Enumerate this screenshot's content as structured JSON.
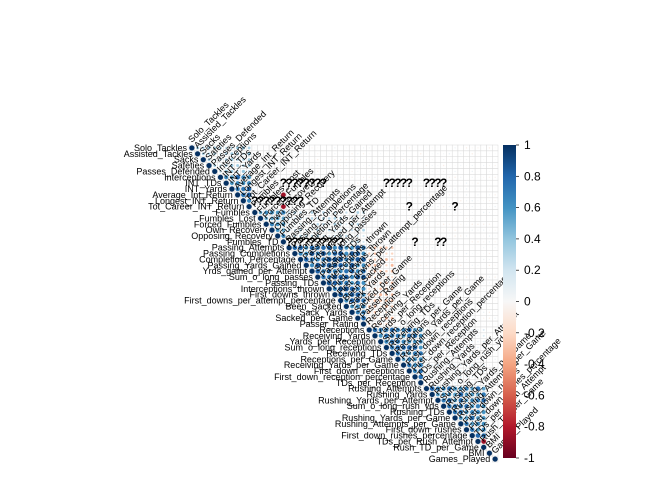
{
  "chart_data": {
    "type": "heatmap",
    "shape": "upper-triangle circles",
    "title": "",
    "variables": [
      "Solo_Tackles",
      "Assisted_Tackles",
      "Sacks",
      "Safeties",
      "Passes_Defended",
      "Interceptions",
      "INT_TDs",
      "INT_Yards",
      "Average_Int_Return",
      "Longest_INT_Return",
      "Tot_Career_INT_Return",
      "Fumbles",
      "Fumbles_Lost",
      "Forced_Fumbles",
      "Own_Recovery",
      "Opposing_Recovery",
      "Fumbles_TD",
      "Passing_Attempts",
      "Passing_Completions",
      "Completion_Percentage",
      "Passing_Yards_Gained",
      "Yrds_gained_per_Attempt",
      "Sum_o_long_passes",
      "Passing_TDs",
      "Interceptions_thrown",
      "First_downs_thrown",
      "First_downs_per_attempt_percentage",
      "Been_Sacked",
      "Sack_Yards",
      "Sacked_per_Game",
      "Passer_Rating",
      "Receptions",
      "Receiving_Yards",
      "Yards_per_Reception",
      "Sum_o_long_receptions",
      "Receiving_TDs",
      "Receptions_per_Game",
      "Receiving_Yards_per_Game",
      "First_down_receptions",
      "First_down_reception_percentage",
      "TDs_per_Reception",
      "Rushing_Attempts",
      "Rushing_Yards",
      "Rushing_Yards_per_Attempt",
      "Sum_o_long_rush_yds",
      "Rushing_TDs",
      "Rushing_Yards_per_Game",
      "Rushing_Attempts_per_Game",
      "First_down_rushes",
      "First_down_rushes_percentage",
      "TDs_per_Rush_Attempt",
      "Rush_TD_per_Game",
      "BMI",
      "Games_Played"
    ],
    "row_labels": [
      "Solo_Tackles",
      "Assisted_Tackles",
      "Sacks",
      "Safeties",
      "Passes_Defended",
      "Interceptions",
      "INT_TDs",
      "INT_Yards",
      "Average_Int_Return",
      "Longest_INT_Return",
      "Tot_Career_INT_Return",
      "Fumbles",
      "Fumbles_Lost",
      "Forced_Fumbles",
      "Own_Recovery",
      "Opposing_Recovery",
      "Fumbles_TD",
      "Passing_Attempts",
      "Passing_Completions",
      "Completion_Percentage",
      "Passing_Yards_Gained",
      "Yrds_gained_per_Attempt",
      "Sum_o_long_passes",
      "Passing_TDs",
      "Interceptions_thrown",
      "First_downs_thrown",
      "First_downs_per_attempt_percentage",
      "Been_Sacked",
      "Sack_Yards",
      "Sacked_per_Game",
      "Passer_Rating",
      "Receptions",
      "Receiving_Yards",
      "Yards_per_Reception",
      "Sum_o_long_receptions",
      "Receiving_TDs",
      "Receptions_per_Game",
      "Receiving_Yards_per_Game",
      "First_down_receptions",
      "First_down_reception_percentage",
      "TDs_per_Reception",
      "Rushing_Attempts",
      "Rushing_Yards",
      "Rushing_Yards_per_Attempt",
      "Sum_o_long_rush_yds",
      "Rushing_TDs",
      "Rushing_Yards_per_Game",
      "Rushing_Attempts_per_Game",
      "First_down_rushes",
      "First_down_rushes_percentage",
      "TDs_per_Rush_Attempt",
      "Rush_TD_per_Game",
      "BMI",
      "Games_Played"
    ],
    "col_labels": [
      "Solo_Tackles",
      "Assisted_Tackles",
      "Sacks",
      "Safeties",
      "Passes_Defended",
      "Interceptions",
      "INT_TDs",
      "INT_Yards",
      "Average_Int_Return",
      "Longest_INT_Return",
      "Tot_Career_INT_Return",
      "Fumbles",
      "Fumbles_Lost",
      "Forced_Fumbles",
      "Own_Recovery",
      "Opposing_Recovery",
      "Fumbles_TD",
      "Passing_Attempts",
      "Passing_Completions",
      "Completion_Percentage",
      "Passing_Yards_Gained",
      "Yrds_gained_per_Attempt",
      "Sum_o_long_passes",
      "Passing_TDs",
      "Interceptions_thrown",
      "First_downs_thrown",
      "First_downs_per_attempt_percentage",
      "Been_Sacked",
      "Sack_Yards",
      "Sacked_per_Game",
      "Passer_Rating",
      "Receptions",
      "Receiving_Yards",
      "Yards_per_Reception",
      "Sum_o_long_receptions",
      "Receiving_TDs",
      "Receptions_per_Game",
      "Receiving_Yards_per_Game",
      "First_down_receptions",
      "First_down_reception_percentage",
      "TDs_per_Reception",
      "Rushing_Attempts",
      "Rushing_Yards",
      "Rushing_Yards_per_Attempt",
      "Sum_o_long_rush_yds",
      "Rushing_TDs",
      "Rushing_Yards_per_Game",
      "Rushing_Attempts_per_Game",
      "First_down_rushes",
      "First_down_rushes_percentage",
      "TDs_per_Rush_Attempt",
      "Rush_TD_per_Game",
      "BMI",
      "Games_Played"
    ],
    "blocks": [
      {
        "start": 0,
        "end": 4,
        "value": 0.35
      },
      {
        "start": 5,
        "end": 10,
        "value": 0.85
      },
      {
        "start": 11,
        "end": 16,
        "value": 0.7
      },
      {
        "start": 17,
        "end": 30,
        "value": 0.9
      },
      {
        "start": 31,
        "end": 40,
        "value": 0.8
      },
      {
        "start": 41,
        "end": 51,
        "value": 0.8
      }
    ],
    "cross_blocks": [
      {
        "rows": [
          17,
          30
        ],
        "cols": [
          31,
          35
        ],
        "value": -0.3
      },
      {
        "rows": [
          11,
          16
        ],
        "cols": [
          17,
          30
        ],
        "value": 0.3
      },
      {
        "rows": [
          0,
          4
        ],
        "cols": [
          5,
          10
        ],
        "value": 0.4
      },
      {
        "rows": [
          31,
          40
        ],
        "cols": [
          41,
          51
        ],
        "value": 0.15
      }
    ],
    "negative_cells": [
      [
        8,
        16
      ],
      [
        10,
        16
      ],
      [
        9,
        16
      ],
      [
        50,
        51
      ]
    ],
    "missing_cells": [
      [
        6,
        16
      ],
      [
        6,
        17
      ],
      [
        6,
        18
      ],
      [
        6,
        19
      ],
      [
        6,
        20
      ],
      [
        6,
        21
      ],
      [
        6,
        22
      ],
      [
        6,
        23
      ],
      [
        6,
        34
      ],
      [
        6,
        35
      ],
      [
        6,
        36
      ],
      [
        6,
        37
      ],
      [
        6,
        38
      ],
      [
        6,
        41
      ],
      [
        6,
        42
      ],
      [
        6,
        43
      ],
      [
        6,
        44
      ],
      [
        9,
        11
      ],
      [
        9,
        12
      ],
      [
        9,
        13
      ],
      [
        9,
        14
      ],
      [
        9,
        15
      ],
      [
        9,
        16
      ],
      [
        9,
        17
      ],
      [
        9,
        18
      ],
      [
        9,
        19
      ],
      [
        10,
        38
      ],
      [
        10,
        46
      ],
      [
        16,
        17
      ],
      [
        16,
        18
      ],
      [
        16,
        19
      ],
      [
        16,
        20
      ],
      [
        16,
        21
      ],
      [
        16,
        22
      ],
      [
        16,
        23
      ],
      [
        16,
        24
      ],
      [
        16,
        25
      ],
      [
        16,
        26
      ],
      [
        16,
        39
      ],
      [
        16,
        43
      ],
      [
        16,
        44
      ]
    ],
    "missing_symbol": "?",
    "colorbar": {
      "range": [
        -1,
        1
      ],
      "ticks": [
        "1",
        "0.8",
        "0.6",
        "0.4",
        "0.2",
        "0",
        "-0.2",
        "-0.4",
        "-0.6",
        "-0.8",
        "-1"
      ],
      "colors": {
        "negative": "#67001F",
        "neutral": "#F7F7F7",
        "positive": "#053061"
      }
    },
    "xlabel": "",
    "ylabel": ""
  }
}
